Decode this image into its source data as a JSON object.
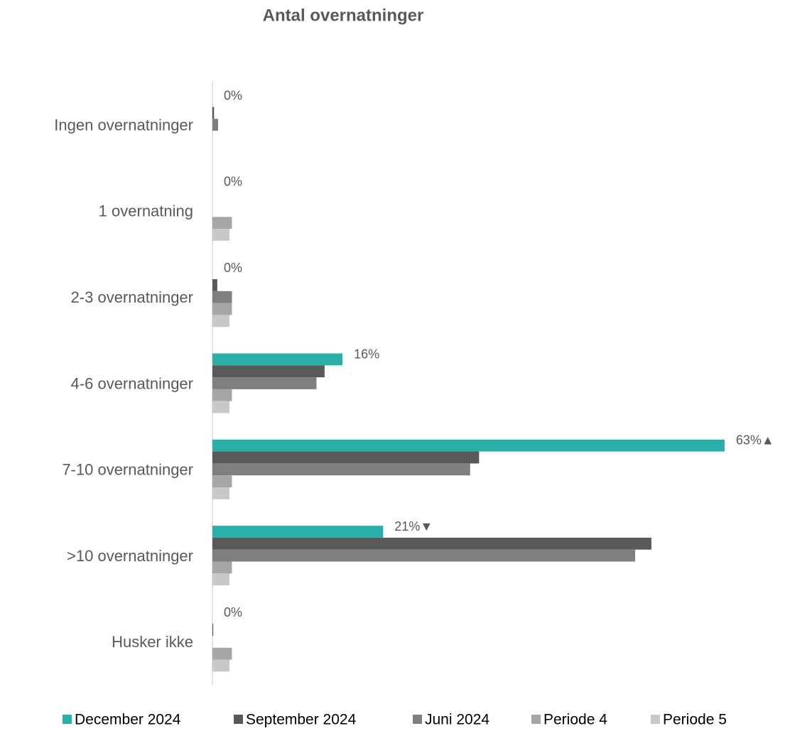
{
  "chart_data": {
    "type": "hbar",
    "title": "Antal overnatninger",
    "categories": [
      "Ingen overnatninger",
      "1 overnatning",
      "2-3 overnatninger",
      "4-6 overnatninger",
      "7-10 overnatninger",
      ">10 overnatninger",
      "Husker ikke"
    ],
    "xlim": [
      0,
      70
    ],
    "legend": "bottom",
    "series": [
      {
        "name": "December 2024",
        "color": "#2aaea8",
        "values": [
          0,
          0,
          0,
          16,
          63,
          21,
          0
        ],
        "value_labels": [
          "0%",
          "0%",
          "0%",
          "16%",
          "63%▲",
          "21%▼",
          "0%"
        ]
      },
      {
        "name": "September 2024",
        "color": "#595959",
        "values": [
          0.2,
          0,
          0.6,
          13.8,
          32.8,
          54,
          0.1
        ]
      },
      {
        "name": "Juni 2024",
        "color": "#7f7f7f",
        "values": [
          0.7,
          0,
          2.4,
          12.8,
          31.7,
          52,
          0
        ]
      },
      {
        "name": "Periode 4",
        "color": "#a6a6a6",
        "values": [
          0,
          2.4,
          2.4,
          2.4,
          2.4,
          2.4,
          2.4
        ]
      },
      {
        "name": "Periode 5",
        "color": "#c8c8c8",
        "values": [
          0,
          2.1,
          2.1,
          2.1,
          2.1,
          2.1,
          2.1
        ]
      }
    ]
  }
}
